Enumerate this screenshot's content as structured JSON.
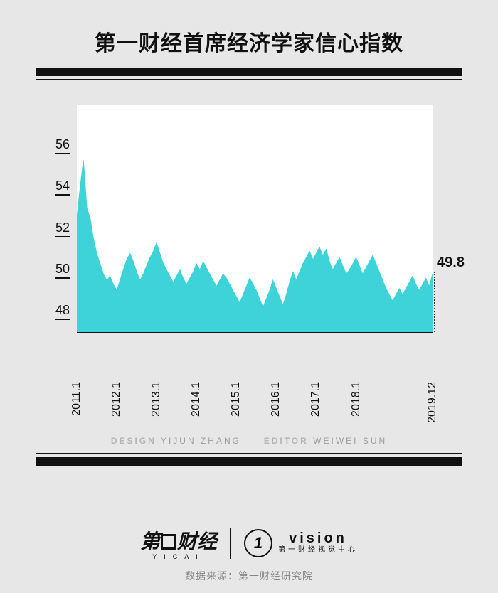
{
  "title": "第一财经首席经济学家信心指数",
  "chart": {
    "type": "area",
    "background_color": "#ffffff",
    "page_background": "#e7e7e7",
    "fill_color": "#3dd3d8",
    "stroke_color": "#3dd3d8",
    "axis_color": "#111111",
    "ylim": [
      47,
      58
    ],
    "y_ticks": [
      48,
      50,
      52,
      54,
      56
    ],
    "y_fontsize": 18,
    "x_labels": [
      "2011.1",
      "2012.1",
      "2013.1",
      "2014.1",
      "2015.1",
      "2016.1",
      "2017.1",
      "2018.1",
      "2019.12"
    ],
    "x_positions_months": [
      0,
      12,
      24,
      36,
      48,
      60,
      72,
      84,
      107
    ],
    "x_fontsize": 16,
    "n_points": 108,
    "values": [
      52.5,
      54.0,
      55.3,
      53.0,
      52.5,
      51.5,
      50.8,
      50.3,
      49.8,
      49.5,
      49.7,
      49.3,
      49.0,
      49.5,
      50.0,
      50.5,
      50.8,
      50.4,
      49.9,
      49.5,
      49.8,
      50.2,
      50.6,
      50.9,
      51.3,
      50.8,
      50.3,
      50.0,
      49.7,
      49.4,
      49.7,
      50.0,
      49.6,
      49.3,
      49.6,
      49.9,
      50.3,
      50.0,
      50.4,
      50.1,
      49.8,
      49.5,
      49.2,
      49.5,
      49.8,
      49.6,
      49.3,
      49.0,
      48.7,
      48.4,
      48.8,
      49.2,
      49.6,
      49.3,
      49.0,
      48.6,
      48.2,
      48.6,
      49.0,
      49.5,
      49.1,
      48.7,
      48.3,
      48.8,
      49.4,
      49.9,
      49.5,
      49.9,
      50.3,
      50.6,
      50.9,
      50.5,
      50.8,
      51.1,
      50.7,
      51.0,
      50.4,
      50.0,
      50.3,
      50.6,
      50.2,
      49.8,
      50.0,
      50.3,
      50.6,
      50.2,
      49.8,
      50.1,
      50.4,
      50.7,
      50.3,
      49.9,
      49.5,
      49.1,
      48.8,
      48.5,
      48.8,
      49.1,
      48.8,
      49.1,
      49.4,
      49.7,
      49.3,
      49.0,
      49.3,
      49.6,
      49.2,
      49.8
    ],
    "end_label": "49.8",
    "end_value": 49.8,
    "title_fontsize": 30
  },
  "credits": {
    "design_label": "DESIGN",
    "design_name": "YIJUN ZHANG",
    "editor_label": "EDITOR",
    "editor_name": "WEIWEI SUN"
  },
  "logos": {
    "yicai_main": "第  财经",
    "yicai_sub": "YICAI",
    "vision_glyph": "1",
    "vision_main": "vision",
    "vision_sub": "第一财经视觉中心"
  },
  "source": "数据来源：第一财经研究院"
}
